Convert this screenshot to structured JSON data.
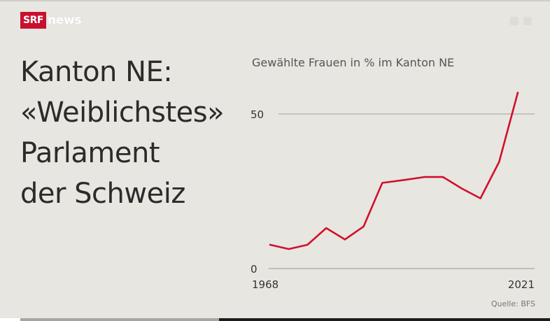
{
  "brand": {
    "box": "SRF",
    "word": "news"
  },
  "headline": [
    "Kanton NE:",
    "«Weiblichstes»",
    "Parlament",
    "der Schweiz"
  ],
  "source": "Quelle: BFS",
  "colors": {
    "line": "#d0112b",
    "brand": "#c8102e",
    "grid": "#a9a7a2"
  },
  "chart_data": {
    "type": "line",
    "title": "Gewählte Frauen in % im Kanton NE",
    "x_tick_labels": [
      "1968",
      "2021"
    ],
    "y_tick_labels": [
      "0",
      "50"
    ],
    "ylim": [
      0,
      57
    ],
    "y_ticks": [
      0,
      50
    ],
    "grid": "horizontal",
    "series": [
      {
        "x": [
          1968,
          1972,
          1976,
          1980,
          1984,
          1988,
          1992,
          1997,
          2001,
          2005,
          2009,
          2013,
          2017,
          2021
        ],
        "y": [
          7.7,
          6.3,
          7.7,
          13.1,
          9.4,
          13.6,
          27.7,
          28.7,
          29.6,
          29.6,
          25.9,
          22.7,
          34.5,
          56.9
        ]
      }
    ]
  }
}
